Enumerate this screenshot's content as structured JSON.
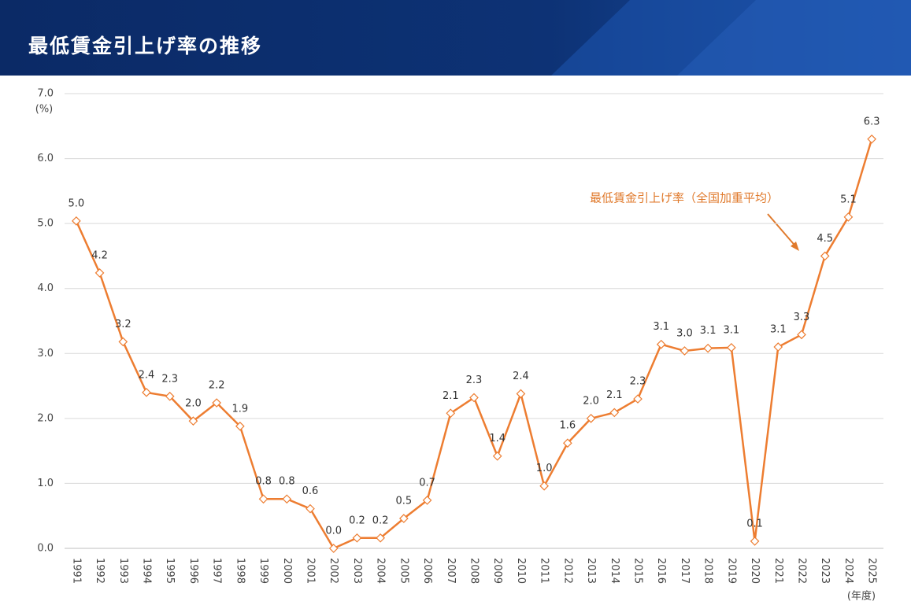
{
  "chart_data": {
    "type": "line",
    "title": "最低賃金引上げ率の推移",
    "y_unit": "(%)",
    "x_label": "(年度)",
    "annotation": "最低賃金引上げ率（全国加重平均）",
    "categories": [
      "1991",
      "1992",
      "1993",
      "1994",
      "1995",
      "1996",
      "1997",
      "1998",
      "1999",
      "2000",
      "2001",
      "2002",
      "2003",
      "2004",
      "2005",
      "2006",
      "2007",
      "2008",
      "2009",
      "2010",
      "2011",
      "2012",
      "2013",
      "2014",
      "2015",
      "2016",
      "2017",
      "2018",
      "2019",
      "2020",
      "2021",
      "2022",
      "2023",
      "2024",
      "2025"
    ],
    "series": [
      {
        "color": "#ed7d31",
        "values": [
          5.04,
          4.24,
          3.18,
          2.4,
          2.34,
          1.96,
          2.24,
          1.88,
          0.76,
          0.76,
          0.61,
          0.0,
          0.16,
          0.16,
          0.46,
          0.74,
          2.08,
          2.32,
          1.42,
          2.38,
          0.96,
          1.62,
          2.0,
          2.09,
          2.3,
          3.14,
          3.04,
          3.08,
          3.09,
          0.11,
          3.1,
          3.29,
          4.5,
          5.1,
          6.3
        ],
        "value_labels": [
          "5.0",
          "4.2",
          "3.2",
          "2.4",
          "2.3",
          "2.0",
          "2.2",
          "1.9",
          "0.8",
          "0.8",
          "0.6",
          "0.0",
          "0.2",
          "0.2",
          "0.5",
          "0.7",
          "2.1",
          "2.3",
          "1.4",
          "2.4",
          "1.0",
          "1.6",
          "2.0",
          "2.1",
          "2.3",
          "3.1",
          "3.0",
          "3.1",
          "3.1",
          "0.1",
          "3.1",
          "3.3",
          "4.5",
          "5.1",
          "6.3"
        ]
      }
    ],
    "ylim": [
      0,
      7
    ],
    "yticks": [
      {
        "value": 0,
        "label": "0.0"
      },
      {
        "value": 1,
        "label": "1.0"
      },
      {
        "value": 2,
        "label": "2.0"
      },
      {
        "value": 3,
        "label": "3.0"
      },
      {
        "value": 4,
        "label": "4.0"
      },
      {
        "value": 5,
        "label": "5.0"
      },
      {
        "value": 6,
        "label": "6.0"
      },
      {
        "value": 7,
        "label": "7.0"
      }
    ],
    "grid": true
  }
}
